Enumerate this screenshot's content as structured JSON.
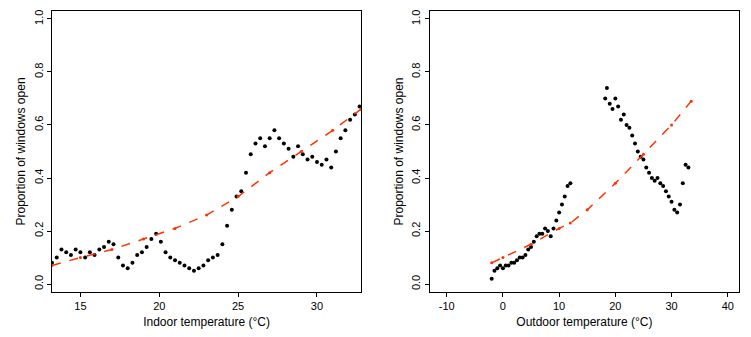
{
  "chart_data": [
    {
      "type": "scatter",
      "x_label": "Indoor temperature (°C)",
      "y_label": "Proportion of windows open",
      "xlim": [
        13.2,
        32.8
      ],
      "xticks": [
        15,
        20,
        25,
        30
      ],
      "ylim": [
        -0.03,
        1.03
      ],
      "yticks": [
        {
          "value": 0,
          "label": "0.0"
        },
        0.2,
        0.4,
        0.6,
        0.8,
        {
          "value": 1,
          "label": "1.0"
        }
      ],
      "series": [
        {
          "type": "scatter",
          "color": "#000000",
          "marker": "circle",
          "x": [
            13.2,
            13.5,
            13.8,
            14.1,
            14.4,
            14.7,
            15.0,
            15.3,
            15.6,
            15.9,
            16.2,
            16.5,
            16.8,
            17.1,
            17.4,
            17.7,
            18.0,
            18.3,
            18.6,
            18.9,
            19.2,
            19.5,
            19.8,
            20.1,
            20.4,
            20.7,
            21.0,
            21.3,
            21.6,
            21.9,
            22.2,
            22.5,
            22.8,
            23.1,
            23.4,
            23.7,
            24.0,
            24.3,
            24.6,
            24.9,
            25.2,
            25.5,
            25.8,
            26.1,
            26.4,
            26.7,
            27.0,
            27.3,
            27.6,
            27.9,
            28.2,
            28.5,
            28.8,
            29.1,
            29.4,
            29.7,
            30.0,
            30.3,
            30.6,
            30.9,
            31.2,
            31.5,
            31.8,
            32.1,
            32.4,
            32.7
          ],
          "values": [
            0.08,
            0.1,
            0.13,
            0.12,
            0.11,
            0.13,
            0.12,
            0.1,
            0.12,
            0.11,
            0.13,
            0.14,
            0.16,
            0.15,
            0.1,
            0.07,
            0.06,
            0.08,
            0.11,
            0.12,
            0.14,
            0.17,
            0.19,
            0.16,
            0.12,
            0.1,
            0.09,
            0.08,
            0.07,
            0.06,
            0.05,
            0.06,
            0.07,
            0.09,
            0.1,
            0.11,
            0.15,
            0.22,
            0.28,
            0.33,
            0.35,
            0.42,
            0.49,
            0.53,
            0.55,
            0.52,
            0.55,
            0.58,
            0.55,
            0.53,
            0.51,
            0.48,
            0.52,
            0.49,
            0.47,
            0.48,
            0.46,
            0.45,
            0.47,
            0.44,
            0.5,
            0.55,
            0.58,
            0.62,
            0.64,
            0.67
          ]
        },
        {
          "type": "line",
          "color": "#ff3300",
          "line_style": "dashed",
          "marker": "circle",
          "x": [
            13.2,
            15,
            17,
            19,
            21,
            23,
            25,
            27,
            29,
            31,
            32.8
          ],
          "values": [
            0.07,
            0.1,
            0.13,
            0.17,
            0.21,
            0.26,
            0.33,
            0.42,
            0.5,
            0.58,
            0.66
          ]
        }
      ]
    },
    {
      "type": "scatter",
      "x_label": "Outdoor temperature (°C)",
      "y_label": "Proportion of windows open",
      "xlim": [
        -13,
        42
      ],
      "xticks": [
        -10,
        0,
        10,
        20,
        30,
        40
      ],
      "ylim": [
        -0.03,
        1.03
      ],
      "yticks": [
        {
          "value": 0,
          "label": "0.0"
        },
        0.2,
        0.4,
        0.6,
        0.8,
        {
          "value": 1,
          "label": "1.0"
        }
      ],
      "series": [
        {
          "type": "scatter",
          "color": "#000000",
          "marker": "circle",
          "x": [
            -2,
            -1.5,
            -1,
            -0.5,
            0,
            0.5,
            1,
            1.5,
            2,
            2.5,
            3,
            3.5,
            4,
            4.5,
            5,
            5.5,
            6,
            6.5,
            7,
            7.5,
            8,
            8.5,
            9,
            9.5,
            10,
            10.5,
            11,
            11.5,
            12,
            18.2,
            18.5,
            19,
            19.5,
            20,
            20.5,
            21,
            21.5,
            22,
            22.5,
            23,
            23.5,
            24,
            24.5,
            25,
            25.5,
            26,
            26.5,
            27,
            27.5,
            28,
            28.5,
            29,
            29.5,
            30,
            30.5,
            31,
            31.5,
            32,
            32.5,
            33
          ],
          "values": [
            0.02,
            0.05,
            0.06,
            0.07,
            0.06,
            0.07,
            0.07,
            0.08,
            0.08,
            0.09,
            0.1,
            0.1,
            0.11,
            0.13,
            0.14,
            0.16,
            0.18,
            0.19,
            0.19,
            0.21,
            0.2,
            0.18,
            0.21,
            0.24,
            0.27,
            0.3,
            0.33,
            0.37,
            0.38,
            0.7,
            0.74,
            0.68,
            0.66,
            0.7,
            0.67,
            0.62,
            0.64,
            0.6,
            0.59,
            0.56,
            0.53,
            0.5,
            0.48,
            0.47,
            0.44,
            0.42,
            0.4,
            0.39,
            0.4,
            0.38,
            0.37,
            0.35,
            0.33,
            0.31,
            0.28,
            0.27,
            0.3,
            0.38,
            0.45,
            0.44
          ]
        },
        {
          "type": "line",
          "color": "#ff3300",
          "line_style": "dashed",
          "marker": "circle",
          "x": [
            -2,
            0,
            5,
            10,
            12,
            15,
            20,
            25,
            30,
            33.5
          ],
          "values": [
            0.08,
            0.1,
            0.15,
            0.21,
            0.23,
            0.28,
            0.38,
            0.49,
            0.6,
            0.69
          ]
        }
      ]
    }
  ]
}
